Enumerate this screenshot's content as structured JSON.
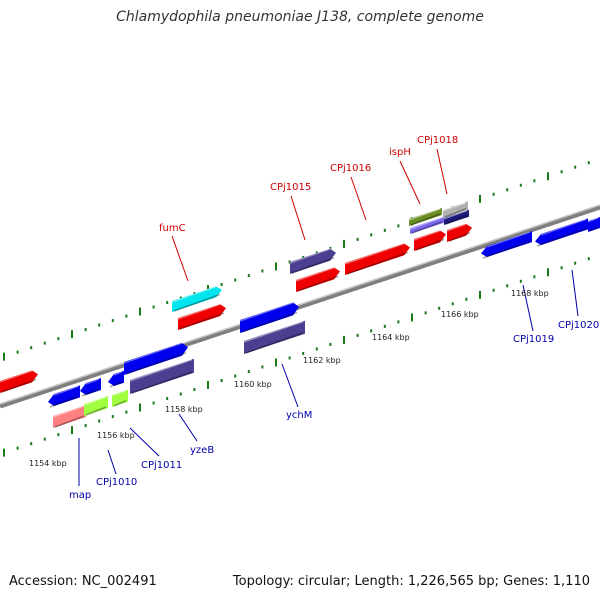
{
  "title": "Chlamydophila pneumoniae J138, complete genome",
  "footer": {
    "accession": "Accession: NC_002491",
    "summary": "Topology: circular; Length: 1,226,565 bp; Genes: 1,110"
  },
  "colors": {
    "backbone": "#8c8c8c",
    "tick_major": "#1a7a1a",
    "kbp_label": "#222222",
    "label_red": "#cc0000",
    "label_blue": "#0000aa",
    "leader": "#cc0000",
    "leader_blue": "#0000aa"
  },
  "scale": {
    "unit": "kbp",
    "labels": [
      "1154 kbp",
      "1156 kbp",
      "1158 kbp",
      "1160 kbp",
      "1162 kbp",
      "1164 kbp",
      "1166 kbp",
      "1168 kbp"
    ]
  },
  "genes": [
    {
      "name": "map",
      "color": "#ff8080",
      "strand": "reverse",
      "label_color": "blue"
    },
    {
      "name": "CPj1010",
      "color": "#a0ff40",
      "strand": "reverse",
      "label_color": "blue"
    },
    {
      "name": "CPj1011",
      "color": "#0000ee",
      "strand": "forward",
      "label_color": "blue"
    },
    {
      "name": "yzeB",
      "color": "#4a3f90",
      "strand": "reverse",
      "label_color": "blue"
    },
    {
      "name": "fumC",
      "color": "#00e5ee",
      "strand": "forward",
      "label_color": "red"
    },
    {
      "name": "ychM",
      "color": "#4a3f90",
      "strand": "reverse",
      "label_color": "blue"
    },
    {
      "name": "CPj1015",
      "color": "#4a3f90",
      "strand": "forward",
      "label_color": "red"
    },
    {
      "name": "CPj1016",
      "color": "#ee0000",
      "strand": "forward",
      "label_color": "red"
    },
    {
      "name": "ispH",
      "color": "#6b8e23",
      "strand": "forward",
      "label_color": "red"
    },
    {
      "name": "CPj1018",
      "color": "#b0b0b0",
      "strand": "forward",
      "label_color": "red"
    },
    {
      "name": "CPj1019",
      "color": "#0000ee",
      "strand": "reverse",
      "label_color": "blue"
    },
    {
      "name": "CPj1020",
      "color": "#0000ee",
      "strand": "reverse",
      "label_color": "blue"
    }
  ]
}
